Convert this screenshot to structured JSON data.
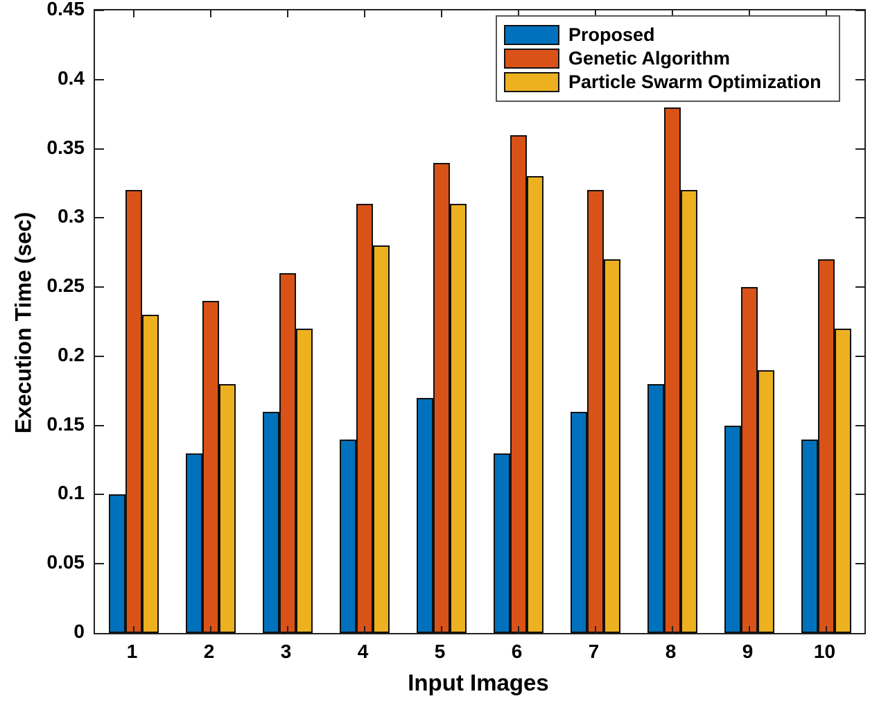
{
  "chart_data": {
    "type": "bar",
    "title": "",
    "xlabel": "Input Images",
    "ylabel": "Execution Time (sec)",
    "categories": [
      "1",
      "2",
      "3",
      "4",
      "5",
      "6",
      "7",
      "8",
      "9",
      "10"
    ],
    "series": [
      {
        "name": "Proposed",
        "color": "#0072BD",
        "values": [
          0.1,
          0.13,
          0.16,
          0.14,
          0.17,
          0.13,
          0.16,
          0.18,
          0.15,
          0.14
        ]
      },
      {
        "name": "Genetic Algorithm",
        "color": "#D95319",
        "values": [
          0.32,
          0.24,
          0.26,
          0.31,
          0.34,
          0.36,
          0.32,
          0.38,
          0.25,
          0.27
        ]
      },
      {
        "name": "Particle Swarm Optimization",
        "color": "#EDB120",
        "values": [
          0.23,
          0.18,
          0.22,
          0.28,
          0.31,
          0.33,
          0.27,
          0.32,
          0.19,
          0.22
        ]
      }
    ],
    "ylim": [
      0,
      0.45
    ],
    "ytick_step": 0.05,
    "ytick_labels": [
      "0",
      "0.05",
      "0.1",
      "0.15",
      "0.2",
      "0.25",
      "0.3",
      "0.35",
      "0.4",
      "0.45"
    ],
    "legend_position": "top-right",
    "grid": false,
    "bar_edge_color": "#111111",
    "axis_color": "#222222"
  }
}
